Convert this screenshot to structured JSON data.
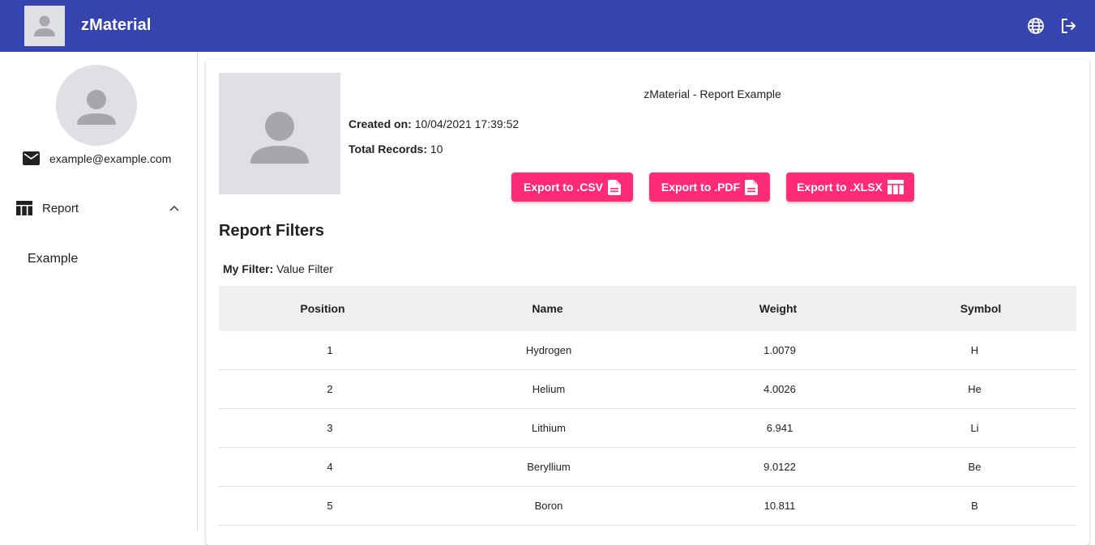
{
  "header": {
    "title": "zMaterial",
    "logo_icon": "person-placeholder-icon",
    "language_icon": "globe-icon",
    "logout_icon": "logout-icon",
    "background": "#3544ae"
  },
  "sidebar": {
    "avatar_icon": "person-placeholder-icon",
    "email": "example@example.com",
    "menu": {
      "group_label": "Report",
      "group_icon": "table-icon",
      "expanded_icon": "chevron-up-icon",
      "items": [
        {
          "label": "Example"
        }
      ]
    }
  },
  "report": {
    "title": "zMaterial - Report Example",
    "created_label": "Created on:",
    "created_value": "10/04/2021 17:39:52",
    "total_label": "Total Records:",
    "total_value": "10",
    "buttons": [
      {
        "label": "Export to .CSV",
        "icon": "file-icon"
      },
      {
        "label": "Export to .PDF",
        "icon": "file-icon"
      },
      {
        "label": "Export to .XLSX",
        "icon": "table-icon"
      }
    ],
    "accent": "#ff2b77",
    "filters_title": "Report Filters",
    "filter_label": "My Filter:",
    "filter_value": "Value Filter"
  },
  "table": {
    "headers": [
      "Position",
      "Name",
      "Weight",
      "Symbol"
    ],
    "rows": [
      [
        "1",
        "Hydrogen",
        "1.0079",
        "H"
      ],
      [
        "2",
        "Helium",
        "4.0026",
        "He"
      ],
      [
        "3",
        "Lithium",
        "6.941",
        "Li"
      ],
      [
        "4",
        "Beryllium",
        "9.0122",
        "Be"
      ],
      [
        "5",
        "Boron",
        "10.811",
        "B"
      ]
    ]
  }
}
